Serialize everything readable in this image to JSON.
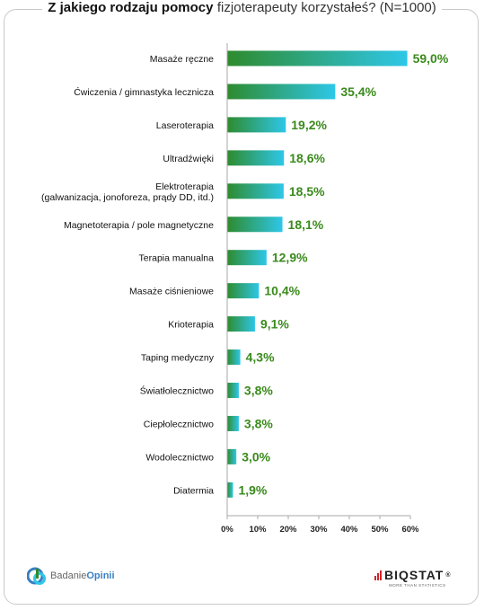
{
  "title": {
    "bold": "Z jakiego rodzaju pomocy",
    "normal": "fizjoterapeuty korzystałeś? (N=1000)"
  },
  "chart_data": {
    "type": "bar",
    "orientation": "horizontal",
    "categories": [
      "Masaże ręczne",
      "Ćwiczenia / gimnastyka lecznicza",
      "Laseroterapia",
      "Ultradźwięki",
      [
        "Elektroterapia",
        "(galwanizacja, jonoforeza, prądy DD, itd.)"
      ],
      "Magnetoterapia / pole magnetyczne",
      "Terapia manualna",
      "Masaże ciśnieniowe",
      "Krioterapia",
      "Taping medyczny",
      "Światłolecznictwo",
      "Ciepłolecznictwo",
      "Wodolecznictwo",
      "Diatermia"
    ],
    "values": [
      59.0,
      35.4,
      19.2,
      18.6,
      18.5,
      18.1,
      12.9,
      10.4,
      9.1,
      4.3,
      3.8,
      3.8,
      3.0,
      1.9
    ],
    "value_labels": [
      "59,0%",
      "35,4%",
      "19,2%",
      "18,6%",
      "18,5%",
      "18,1%",
      "12,9%",
      "10,4%",
      "9,1%",
      "4,3%",
      "3,8%",
      "3,8%",
      "3,0%",
      "1,9%"
    ],
    "x_ticks": [
      "0%",
      "10%",
      "20%",
      "30%",
      "40%",
      "50%",
      "60%"
    ],
    "xlim": [
      0,
      60
    ],
    "colors": {
      "bar_start": "#2e8b2e",
      "bar_end": "#2ec7e8",
      "value_text": "#3a8a1c",
      "axis": "#aaaaaa"
    },
    "grid": false,
    "legend": "none"
  },
  "footer": {
    "left_logo": {
      "prefix": "Badanie",
      "accent": "Opinii",
      "icon": "badanie-opinii-logo-icon"
    },
    "right_logo": {
      "brand": "BIQSTAT",
      "reg": "®",
      "tagline": "MORE THAN STATISTICS",
      "icon": "biqstat-bars-icon"
    }
  }
}
